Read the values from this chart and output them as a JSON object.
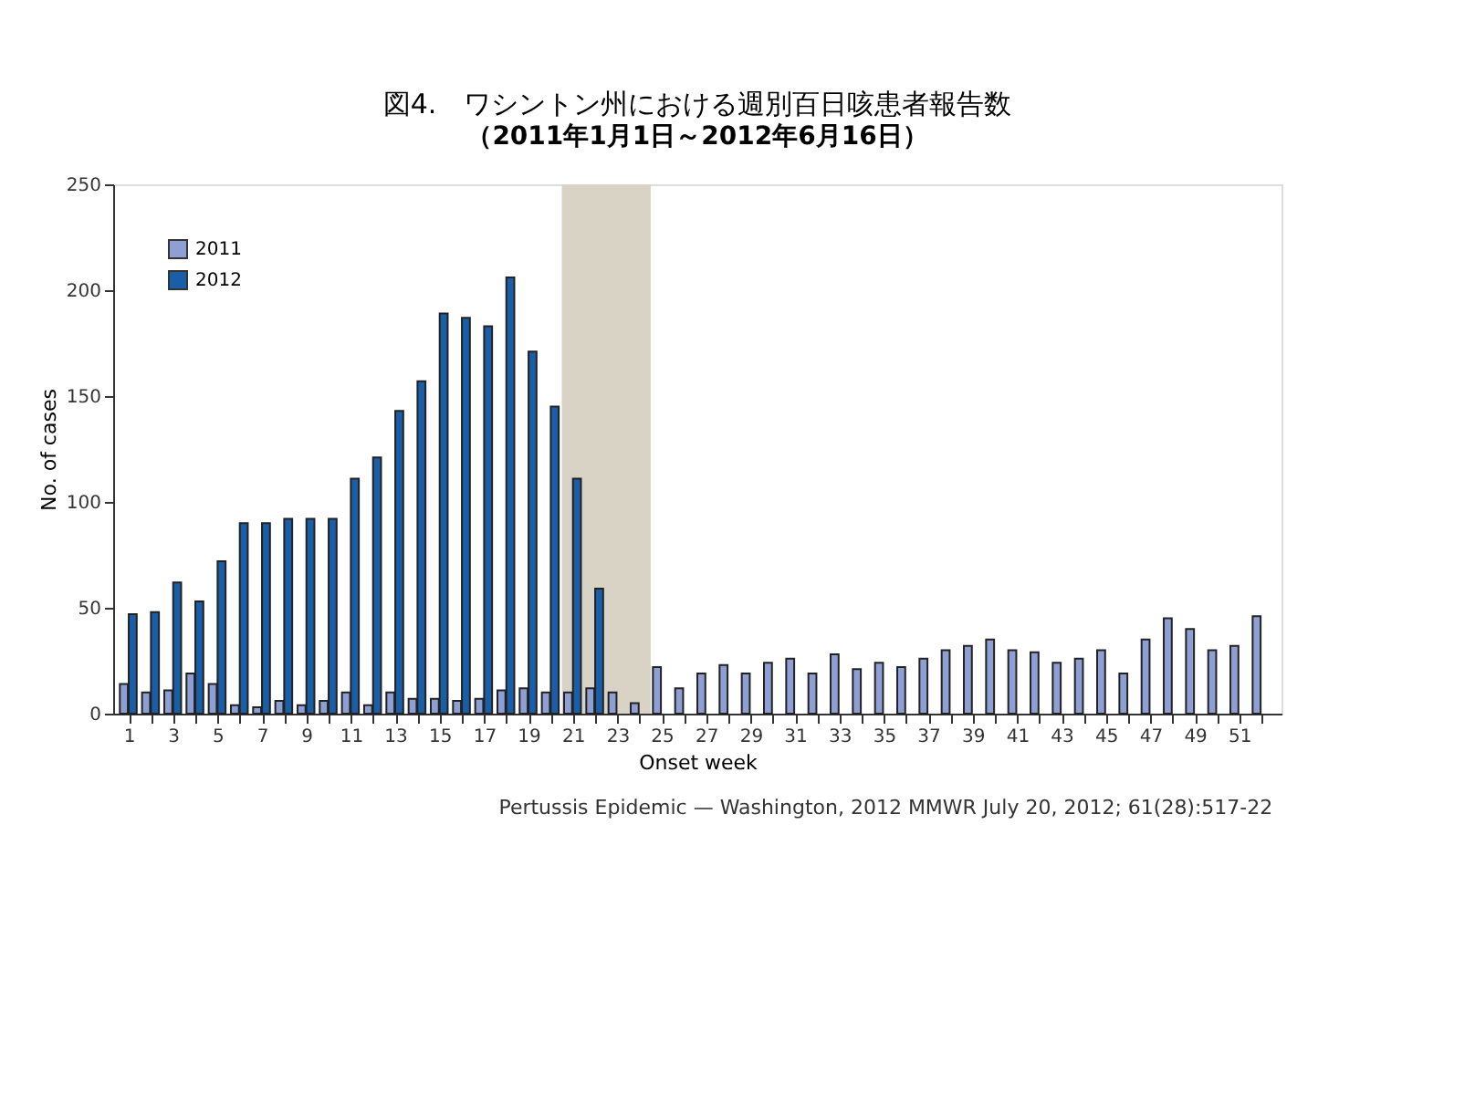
{
  "chart_data": {
    "type": "bar",
    "title": "図4.　ワシントン州における週別百日咳患者報告数",
    "subtitle": "（2011年1月1日～2012年6月16日）",
    "xlabel": "Onset week",
    "ylabel": "No. of cases",
    "x": [
      1,
      2,
      3,
      4,
      5,
      6,
      7,
      8,
      9,
      10,
      11,
      12,
      13,
      14,
      15,
      16,
      17,
      18,
      19,
      20,
      21,
      22,
      23,
      24,
      25,
      26,
      27,
      28,
      29,
      30,
      31,
      32,
      33,
      34,
      35,
      36,
      37,
      38,
      39,
      40,
      41,
      42,
      43,
      44,
      45,
      46,
      47,
      48,
      49,
      50,
      51,
      52
    ],
    "series": [
      {
        "name": "2011",
        "color": "#8e9fd4",
        "values": [
          14,
          10,
          11,
          19,
          14,
          4,
          3,
          6,
          4,
          6,
          10,
          4,
          10,
          7,
          7,
          6,
          7,
          11,
          12,
          10,
          10,
          12,
          10,
          5,
          22,
          12,
          19,
          23,
          19,
          24,
          26,
          19,
          28,
          21,
          24,
          22,
          26,
          30,
          32,
          35,
          30,
          29,
          24,
          26,
          30,
          19,
          35,
          45,
          40,
          30,
          32,
          46
        ]
      },
      {
        "name": "2012",
        "color": "#1a5ea8",
        "values": [
          47,
          48,
          62,
          53,
          72,
          90,
          90,
          92,
          92,
          92,
          111,
          121,
          143,
          157,
          189,
          187,
          183,
          206,
          171,
          145,
          111,
          59,
          null,
          null,
          null,
          null,
          null,
          null,
          null,
          null,
          null,
          null,
          null,
          null,
          null,
          null,
          null,
          null,
          null,
          null,
          null,
          null,
          null,
          null,
          null,
          null,
          null,
          null,
          null,
          null,
          null,
          null
        ]
      }
    ],
    "xlim": [
      0.3,
      52.9
    ],
    "xticks": [
      1,
      {
        "value": 2,
        "label": null
      },
      3,
      {
        "value": 4,
        "label": null
      },
      5,
      {
        "value": 6,
        "label": null
      },
      7,
      {
        "value": 8,
        "label": null
      },
      9,
      {
        "value": 10,
        "label": null
      },
      11,
      {
        "value": 12,
        "label": null
      },
      13,
      {
        "value": 14,
        "label": null
      },
      15,
      {
        "value": 16,
        "label": null
      },
      17,
      {
        "value": 18,
        "label": null
      },
      19,
      {
        "value": 20,
        "label": null
      },
      21,
      {
        "value": 22,
        "label": null
      },
      23,
      {
        "value": 24,
        "label": null
      },
      25,
      {
        "value": 26,
        "label": null
      },
      27,
      {
        "value": 28,
        "label": null
      },
      29,
      {
        "value": 30,
        "label": null
      },
      31,
      {
        "value": 32,
        "label": null
      },
      33,
      {
        "value": 34,
        "label": null
      },
      35,
      {
        "value": 36,
        "label": null
      },
      37,
      {
        "value": 38,
        "label": null
      },
      39,
      {
        "value": 40,
        "label": null
      },
      41,
      {
        "value": 42,
        "label": null
      },
      43,
      {
        "value": 44,
        "label": null
      },
      45,
      {
        "value": 46,
        "label": null
      },
      47,
      {
        "value": 48,
        "label": null
      },
      49,
      {
        "value": 50,
        "label": null
      },
      51,
      {
        "value": 52,
        "label": null
      }
    ],
    "ylim": [
      0,
      250
    ],
    "yticks": [
      0,
      50,
      100,
      150,
      200,
      250
    ],
    "bands": [
      {
        "axis": "x",
        "from": 20.5,
        "to": 24.5,
        "color": "#d8d3c4"
      }
    ],
    "legend": "top left",
    "grid": false,
    "annotations": [
      "Pertussis Epidemic — Washington, 2012 MMWR July 20, 2012; 61(28):517-22"
    ]
  }
}
